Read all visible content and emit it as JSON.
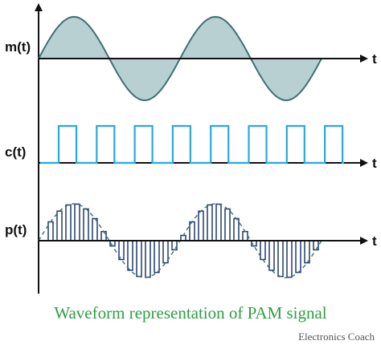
{
  "labels": {
    "message": "m(t)",
    "carrier": "c(t)",
    "pam": "p(t)",
    "time_axis": "t"
  },
  "caption": "Waveform representation of PAM signal",
  "credit": "Electronics Coach",
  "colors": {
    "axis": "#111111",
    "message_stroke": "#3f6f73",
    "message_fill": "#b9d0d2",
    "carrier": "#29a8e0",
    "pam_pulse": "#1f3a6b",
    "envelope_dash": "#3f6f73",
    "caption": "#2e9e44",
    "credit": "#555555"
  }
}
